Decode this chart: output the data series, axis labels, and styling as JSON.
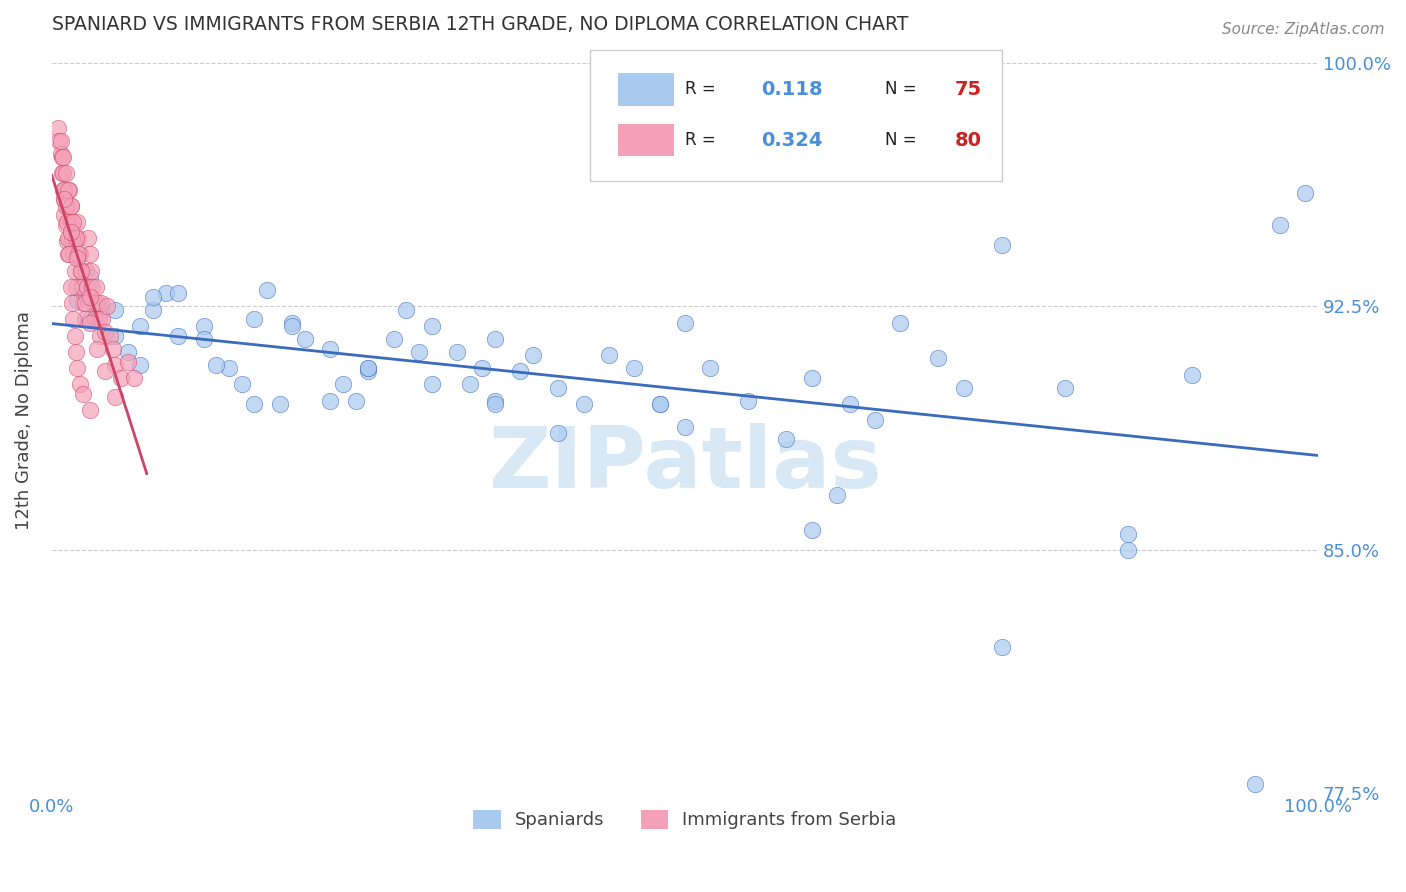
{
  "title": "SPANIARD VS IMMIGRANTS FROM SERBIA 12TH GRADE, NO DIPLOMA CORRELATION CHART",
  "source": "Source: ZipAtlas.com",
  "ylabel": "12th Grade, No Diploma",
  "legend_labels": [
    "Spaniards",
    "Immigrants from Serbia"
  ],
  "R_blue": 0.118,
  "N_blue": 75,
  "R_pink": 0.324,
  "N_pink": 80,
  "blue_color": "#aac9ee",
  "pink_color": "#f4a0b8",
  "blue_line_color": "#3a6bbf",
  "pink_line_color": "#cc4466",
  "title_color": "#333333",
  "axis_label_color": "#444444",
  "tick_color": "#4a90d9",
  "grid_color": "#cccccc",
  "watermark_color": "#d8e8f5",
  "background_color": "#ffffff",
  "ylim_low": 0.775,
  "ylim_high": 1.005,
  "blue_scatter_x": [
    0.02,
    0.03,
    0.04,
    0.05,
    0.06,
    0.07,
    0.08,
    0.09,
    0.1,
    0.12,
    0.14,
    0.15,
    0.16,
    0.17,
    0.19,
    0.2,
    0.22,
    0.23,
    0.24,
    0.25,
    0.27,
    0.28,
    0.29,
    0.3,
    0.32,
    0.33,
    0.34,
    0.35,
    0.37,
    0.38,
    0.4,
    0.42,
    0.44,
    0.46,
    0.48,
    0.5,
    0.52,
    0.55,
    0.58,
    0.6,
    0.63,
    0.65,
    0.67,
    0.7,
    0.72,
    0.75,
    0.8,
    0.85,
    0.9,
    0.97,
    0.99,
    0.03,
    0.05,
    0.07,
    0.1,
    0.13,
    0.16,
    0.19,
    0.22,
    0.25,
    0.3,
    0.35,
    0.4,
    0.5,
    0.6,
    0.75,
    0.85,
    0.95,
    0.08,
    0.12,
    0.18,
    0.25,
    0.35,
    0.48,
    0.62
  ],
  "blue_scatter_y": [
    0.927,
    0.921,
    0.924,
    0.916,
    0.911,
    0.907,
    0.924,
    0.929,
    0.916,
    0.919,
    0.906,
    0.901,
    0.921,
    0.93,
    0.92,
    0.915,
    0.912,
    0.901,
    0.896,
    0.905,
    0.915,
    0.924,
    0.911,
    0.919,
    0.911,
    0.901,
    0.906,
    0.896,
    0.905,
    0.91,
    0.9,
    0.895,
    0.91,
    0.906,
    0.895,
    0.92,
    0.906,
    0.896,
    0.884,
    0.903,
    0.895,
    0.89,
    0.92,
    0.909,
    0.9,
    0.944,
    0.9,
    0.85,
    0.904,
    0.95,
    0.96,
    0.934,
    0.924,
    0.919,
    0.929,
    0.907,
    0.895,
    0.919,
    0.896,
    0.906,
    0.901,
    0.895,
    0.886,
    0.888,
    0.856,
    0.82,
    0.855,
    0.778,
    0.928,
    0.915,
    0.895,
    0.906,
    0.915,
    0.895,
    0.867
  ],
  "pink_scatter_x": [
    0.005,
    0.006,
    0.007,
    0.008,
    0.009,
    0.01,
    0.01,
    0.011,
    0.012,
    0.013,
    0.014,
    0.015,
    0.015,
    0.016,
    0.017,
    0.018,
    0.019,
    0.02,
    0.021,
    0.022,
    0.023,
    0.024,
    0.025,
    0.026,
    0.027,
    0.028,
    0.029,
    0.03,
    0.031,
    0.032,
    0.033,
    0.034,
    0.035,
    0.036,
    0.037,
    0.038,
    0.039,
    0.04,
    0.042,
    0.044,
    0.046,
    0.048,
    0.05,
    0.055,
    0.06,
    0.065,
    0.008,
    0.009,
    0.01,
    0.011,
    0.012,
    0.013,
    0.014,
    0.015,
    0.016,
    0.017,
    0.018,
    0.019,
    0.02,
    0.022,
    0.025,
    0.03,
    0.007,
    0.009,
    0.011,
    0.013,
    0.015,
    0.017,
    0.019,
    0.021,
    0.023,
    0.026,
    0.03,
    0.036,
    0.042,
    0.05,
    0.01,
    0.015,
    0.02,
    0.03
  ],
  "pink_scatter_y": [
    0.98,
    0.976,
    0.972,
    0.966,
    0.961,
    0.958,
    0.953,
    0.95,
    0.945,
    0.941,
    0.961,
    0.956,
    0.951,
    0.946,
    0.941,
    0.936,
    0.931,
    0.951,
    0.946,
    0.941,
    0.936,
    0.931,
    0.926,
    0.921,
    0.936,
    0.931,
    0.946,
    0.941,
    0.936,
    0.931,
    0.926,
    0.921,
    0.931,
    0.926,
    0.921,
    0.916,
    0.926,
    0.921,
    0.917,
    0.925,
    0.916,
    0.912,
    0.907,
    0.903,
    0.908,
    0.903,
    0.971,
    0.966,
    0.961,
    0.956,
    0.951,
    0.946,
    0.941,
    0.931,
    0.926,
    0.921,
    0.916,
    0.911,
    0.906,
    0.901,
    0.898,
    0.893,
    0.976,
    0.971,
    0.966,
    0.961,
    0.956,
    0.951,
    0.946,
    0.941,
    0.936,
    0.926,
    0.92,
    0.912,
    0.905,
    0.897,
    0.958,
    0.948,
    0.94,
    0.928
  ]
}
